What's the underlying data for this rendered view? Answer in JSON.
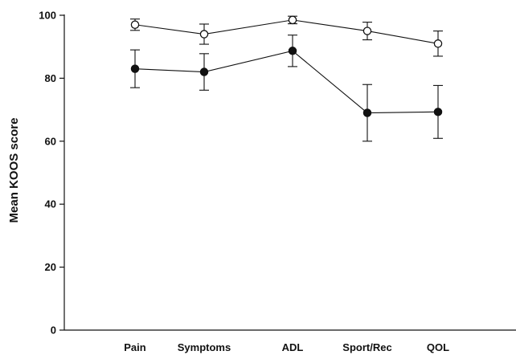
{
  "chart_data": {
    "type": "line",
    "title": "",
    "xlabel": "",
    "ylabel": "Mean KOOS score",
    "categories": [
      "Pain",
      "Symptoms",
      "ADL",
      "Sport/Rec",
      "QOL"
    ],
    "ylim": [
      0,
      100
    ],
    "yticks": [
      0,
      20,
      40,
      60,
      80,
      100
    ],
    "grid": false,
    "legend": "none",
    "series": [
      {
        "marker": "open-circle",
        "color": "#111111",
        "values": [
          97,
          94,
          98.5,
          95,
          91
        ],
        "error": [
          1.8,
          3.2,
          1.2,
          2.8,
          4
        ]
      },
      {
        "marker": "filled-circle",
        "color": "#111111",
        "values": [
          83,
          82,
          88.7,
          69,
          69.3
        ],
        "error": [
          6,
          5.8,
          5,
          9,
          8.4
        ]
      }
    ]
  }
}
